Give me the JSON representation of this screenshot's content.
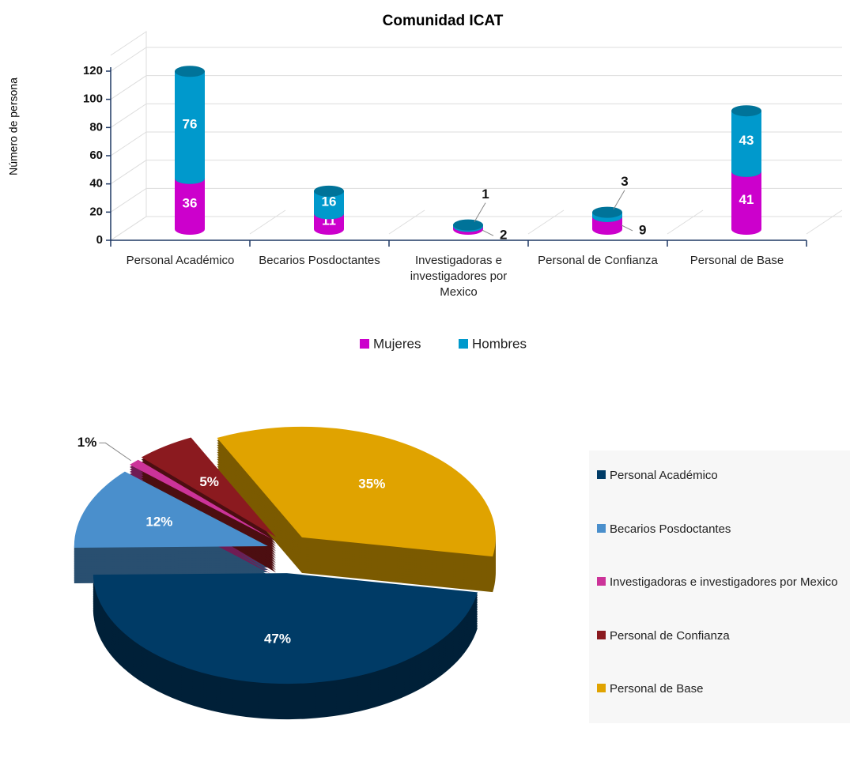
{
  "chart_data": [
    {
      "type": "bar",
      "stacked": true,
      "title": "Comunidad ICAT",
      "y_label": "Número de persona",
      "categories": [
        "Personal Académico",
        "Becarios Posdoctantes",
        "Investigadoras e investigadores por Mexico",
        "Personal de Confianza",
        "Personal de Base"
      ],
      "series": [
        {
          "name": "Mujeres",
          "color": "#cc00cc",
          "values": [
            36,
            11,
            2,
            9,
            41
          ]
        },
        {
          "name": "Hombres",
          "color": "#0099cc",
          "values": [
            76,
            16,
            1,
            3,
            43
          ]
        }
      ],
      "ylim": [
        0,
        120
      ],
      "yticks": [
        0,
        20,
        40,
        60,
        80,
        100,
        120
      ],
      "grid": true,
      "legend": "bottom"
    },
    {
      "type": "pie",
      "categories": [
        "Personal Académico",
        "Becarios Posdoctantes",
        "Investigadoras e investigadores por Mexico",
        "Personal de Confianza",
        "Personal de Base"
      ],
      "values": [
        47,
        12,
        1,
        5,
        35
      ],
      "value_labels": [
        "47%",
        "12%",
        "1%",
        "5%",
        "35%"
      ],
      "colors": [
        "#003b66",
        "#4a8fcc",
        "#cc3399",
        "#8b1a1f",
        "#e0a300"
      ],
      "legend": "right"
    }
  ]
}
